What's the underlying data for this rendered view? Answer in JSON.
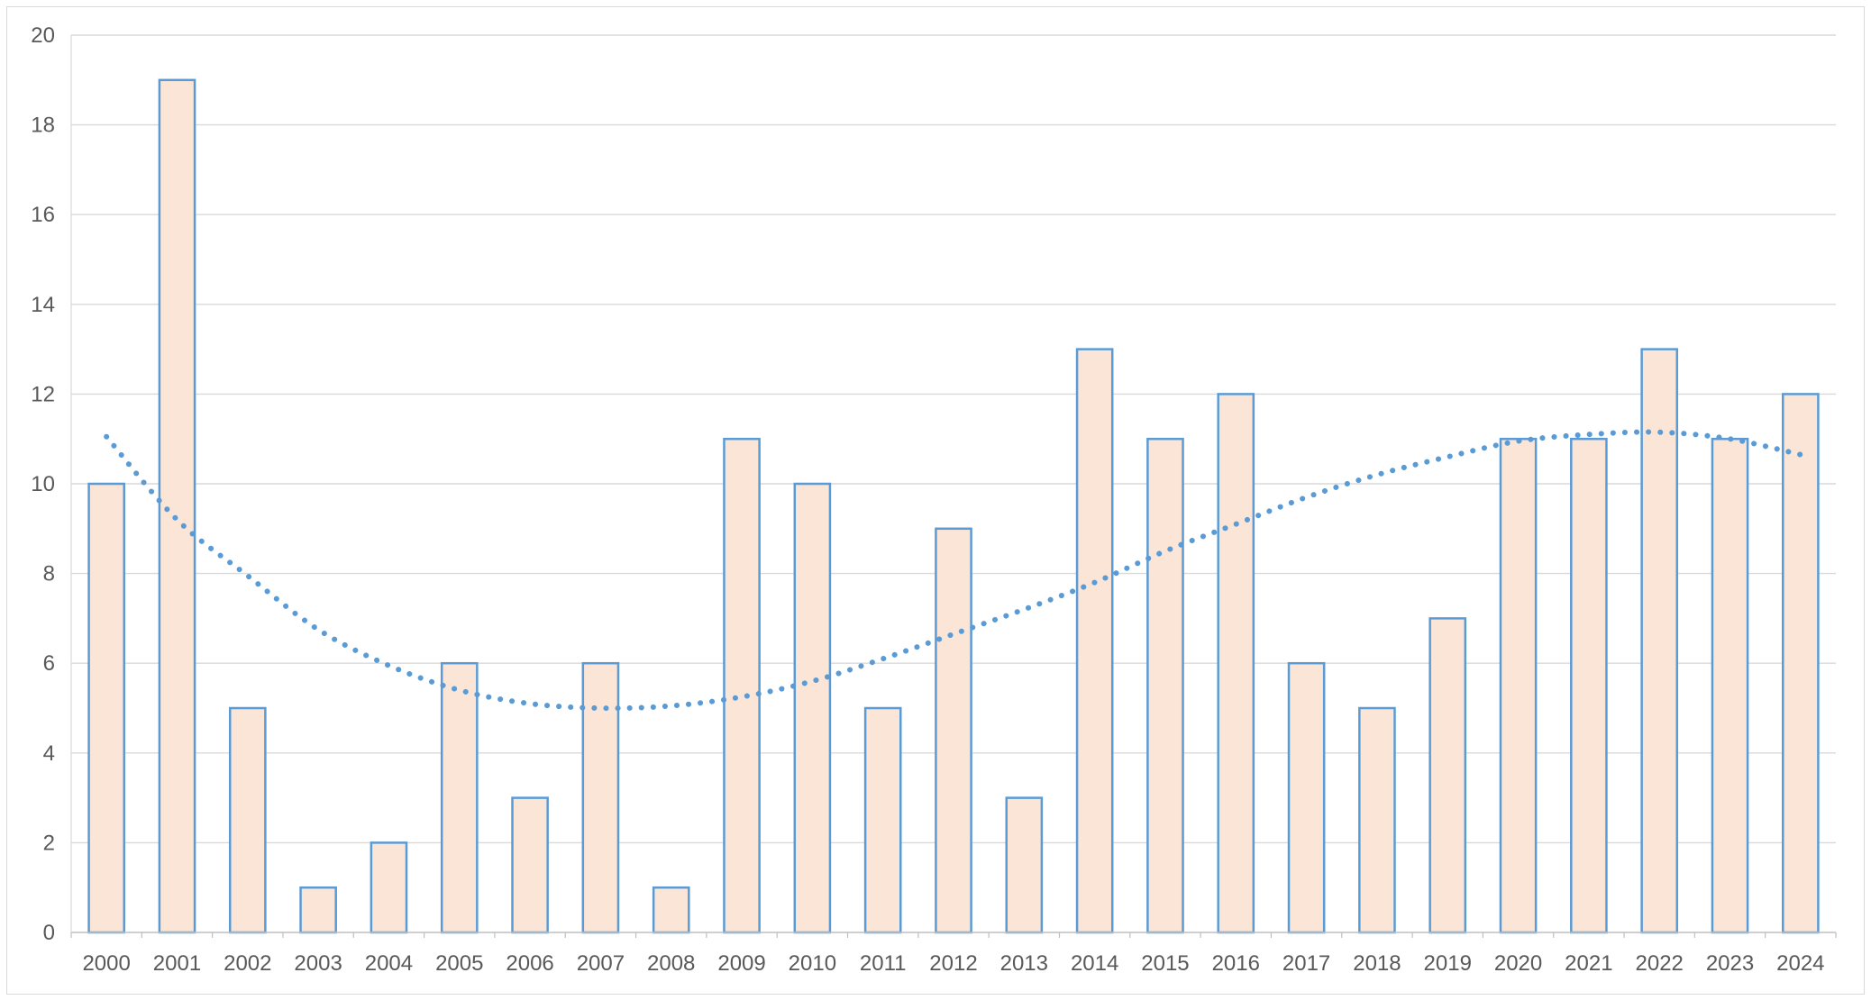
{
  "chart_data": {
    "type": "bar",
    "categories": [
      "2000",
      "2001",
      "2002",
      "2003",
      "2004",
      "2005",
      "2006",
      "2007",
      "2008",
      "2009",
      "2010",
      "2011",
      "2012",
      "2013",
      "2014",
      "2015",
      "2016",
      "2017",
      "2018",
      "2019",
      "2020",
      "2021",
      "2022",
      "2023",
      "2024"
    ],
    "series": [
      {
        "values": [
          10,
          19,
          5,
          1,
          2,
          6,
          3,
          6,
          1,
          11,
          10,
          5,
          9,
          3,
          13,
          11,
          12,
          6,
          5,
          7,
          11,
          11,
          13,
          11,
          12
        ],
        "fill": "#fbe5d6",
        "stroke": "#5b9bd5"
      }
    ],
    "trendline": {
      "type": "polynomial",
      "style": "dotted",
      "color": "#5b9bd5",
      "values": [
        11.05,
        9.2,
        7.95,
        6.75,
        5.95,
        5.4,
        5.1,
        5.0,
        5.05,
        5.25,
        5.6,
        6.1,
        6.65,
        7.2,
        7.8,
        8.5,
        9.1,
        9.7,
        10.2,
        10.6,
        10.95,
        11.1,
        11.15,
        11.0,
        10.65
      ]
    },
    "title": "",
    "xlabel": "",
    "ylabel": "",
    "ylim": [
      0,
      20
    ],
    "yticks": [
      "0",
      "2",
      "4",
      "6",
      "8",
      "10",
      "12",
      "14",
      "16",
      "18",
      "20"
    ],
    "grid": true,
    "gridline_color": "#d9d9d9",
    "legend": "none"
  }
}
